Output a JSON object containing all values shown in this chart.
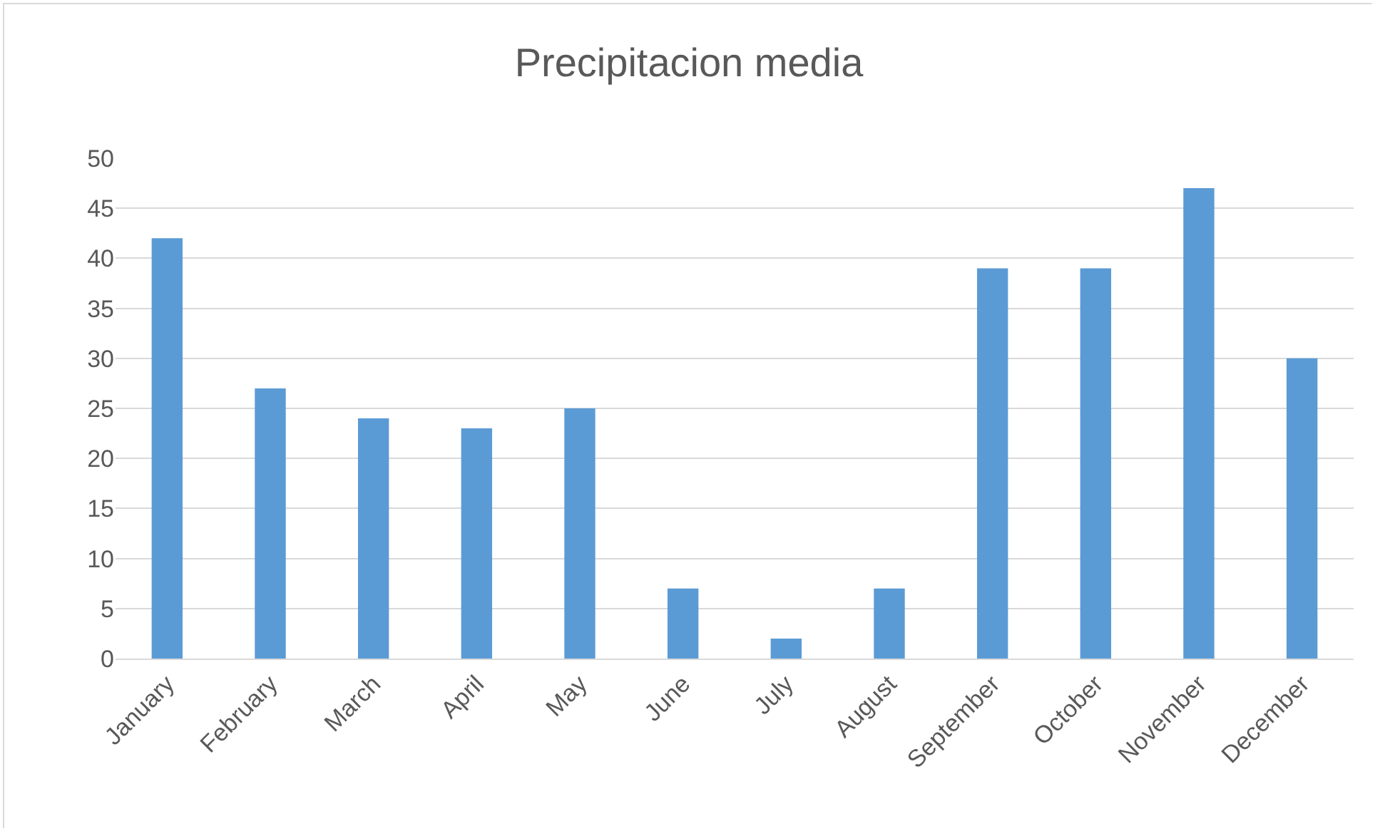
{
  "chart_data": {
    "type": "bar",
    "title": "Precipitacion media",
    "categories": [
      "January",
      "February",
      "March",
      "April",
      "May",
      "June",
      "July",
      "August",
      "September",
      "October",
      "November",
      "December"
    ],
    "values": [
      42,
      27,
      24,
      23,
      25,
      7,
      2,
      7,
      39,
      39,
      47,
      30
    ],
    "color": "#5b9bd5",
    "ylim": [
      0,
      50
    ],
    "yticks": [
      0,
      5,
      10,
      15,
      20,
      25,
      30,
      35,
      40,
      45,
      50
    ],
    "grid": "y"
  }
}
